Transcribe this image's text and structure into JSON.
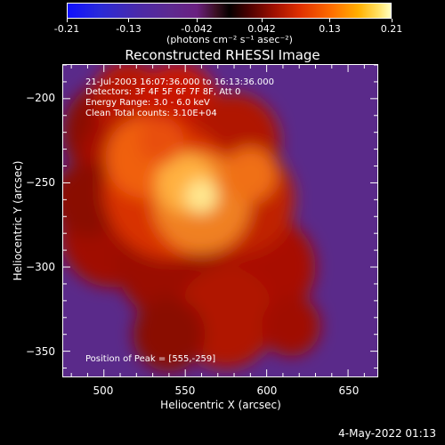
{
  "chart_data": {
    "type": "heatmap",
    "title": "Reconstructed RHESSI Image",
    "xlabel": "Heliocentric X (arcsec)",
    "ylabel": "Heliocentric Y (arcsec)",
    "xlim": [
      475,
      668
    ],
    "ylim": [
      -365,
      -180
    ],
    "xticks": [
      500,
      550,
      600,
      650
    ],
    "yticks": [
      -200,
      -250,
      -300,
      -350
    ],
    "colorbar": {
      "ticks": [
        "-0.21",
        "-0.13",
        "-0.042",
        "0.042",
        "0.13",
        "0.21"
      ],
      "range": [
        -0.21,
        0.21
      ],
      "units": "(photons cm⁻² s⁻¹ asec⁻²)"
    },
    "annotations": [
      "21-Jul-2003 16:07:36.000 to 16:13:36.000",
      "Detectors: 3F 4F 5F 6F 7F 8F, Att 0",
      "Energy Range: 3.0 - 6.0 keV",
      "Clean     Total counts: 3.10E+04"
    ],
    "peak_label": "Position of Peak = [555,-259]",
    "peak": [
      555,
      -259
    ],
    "timestamp": "4-May-2022 01:13"
  }
}
